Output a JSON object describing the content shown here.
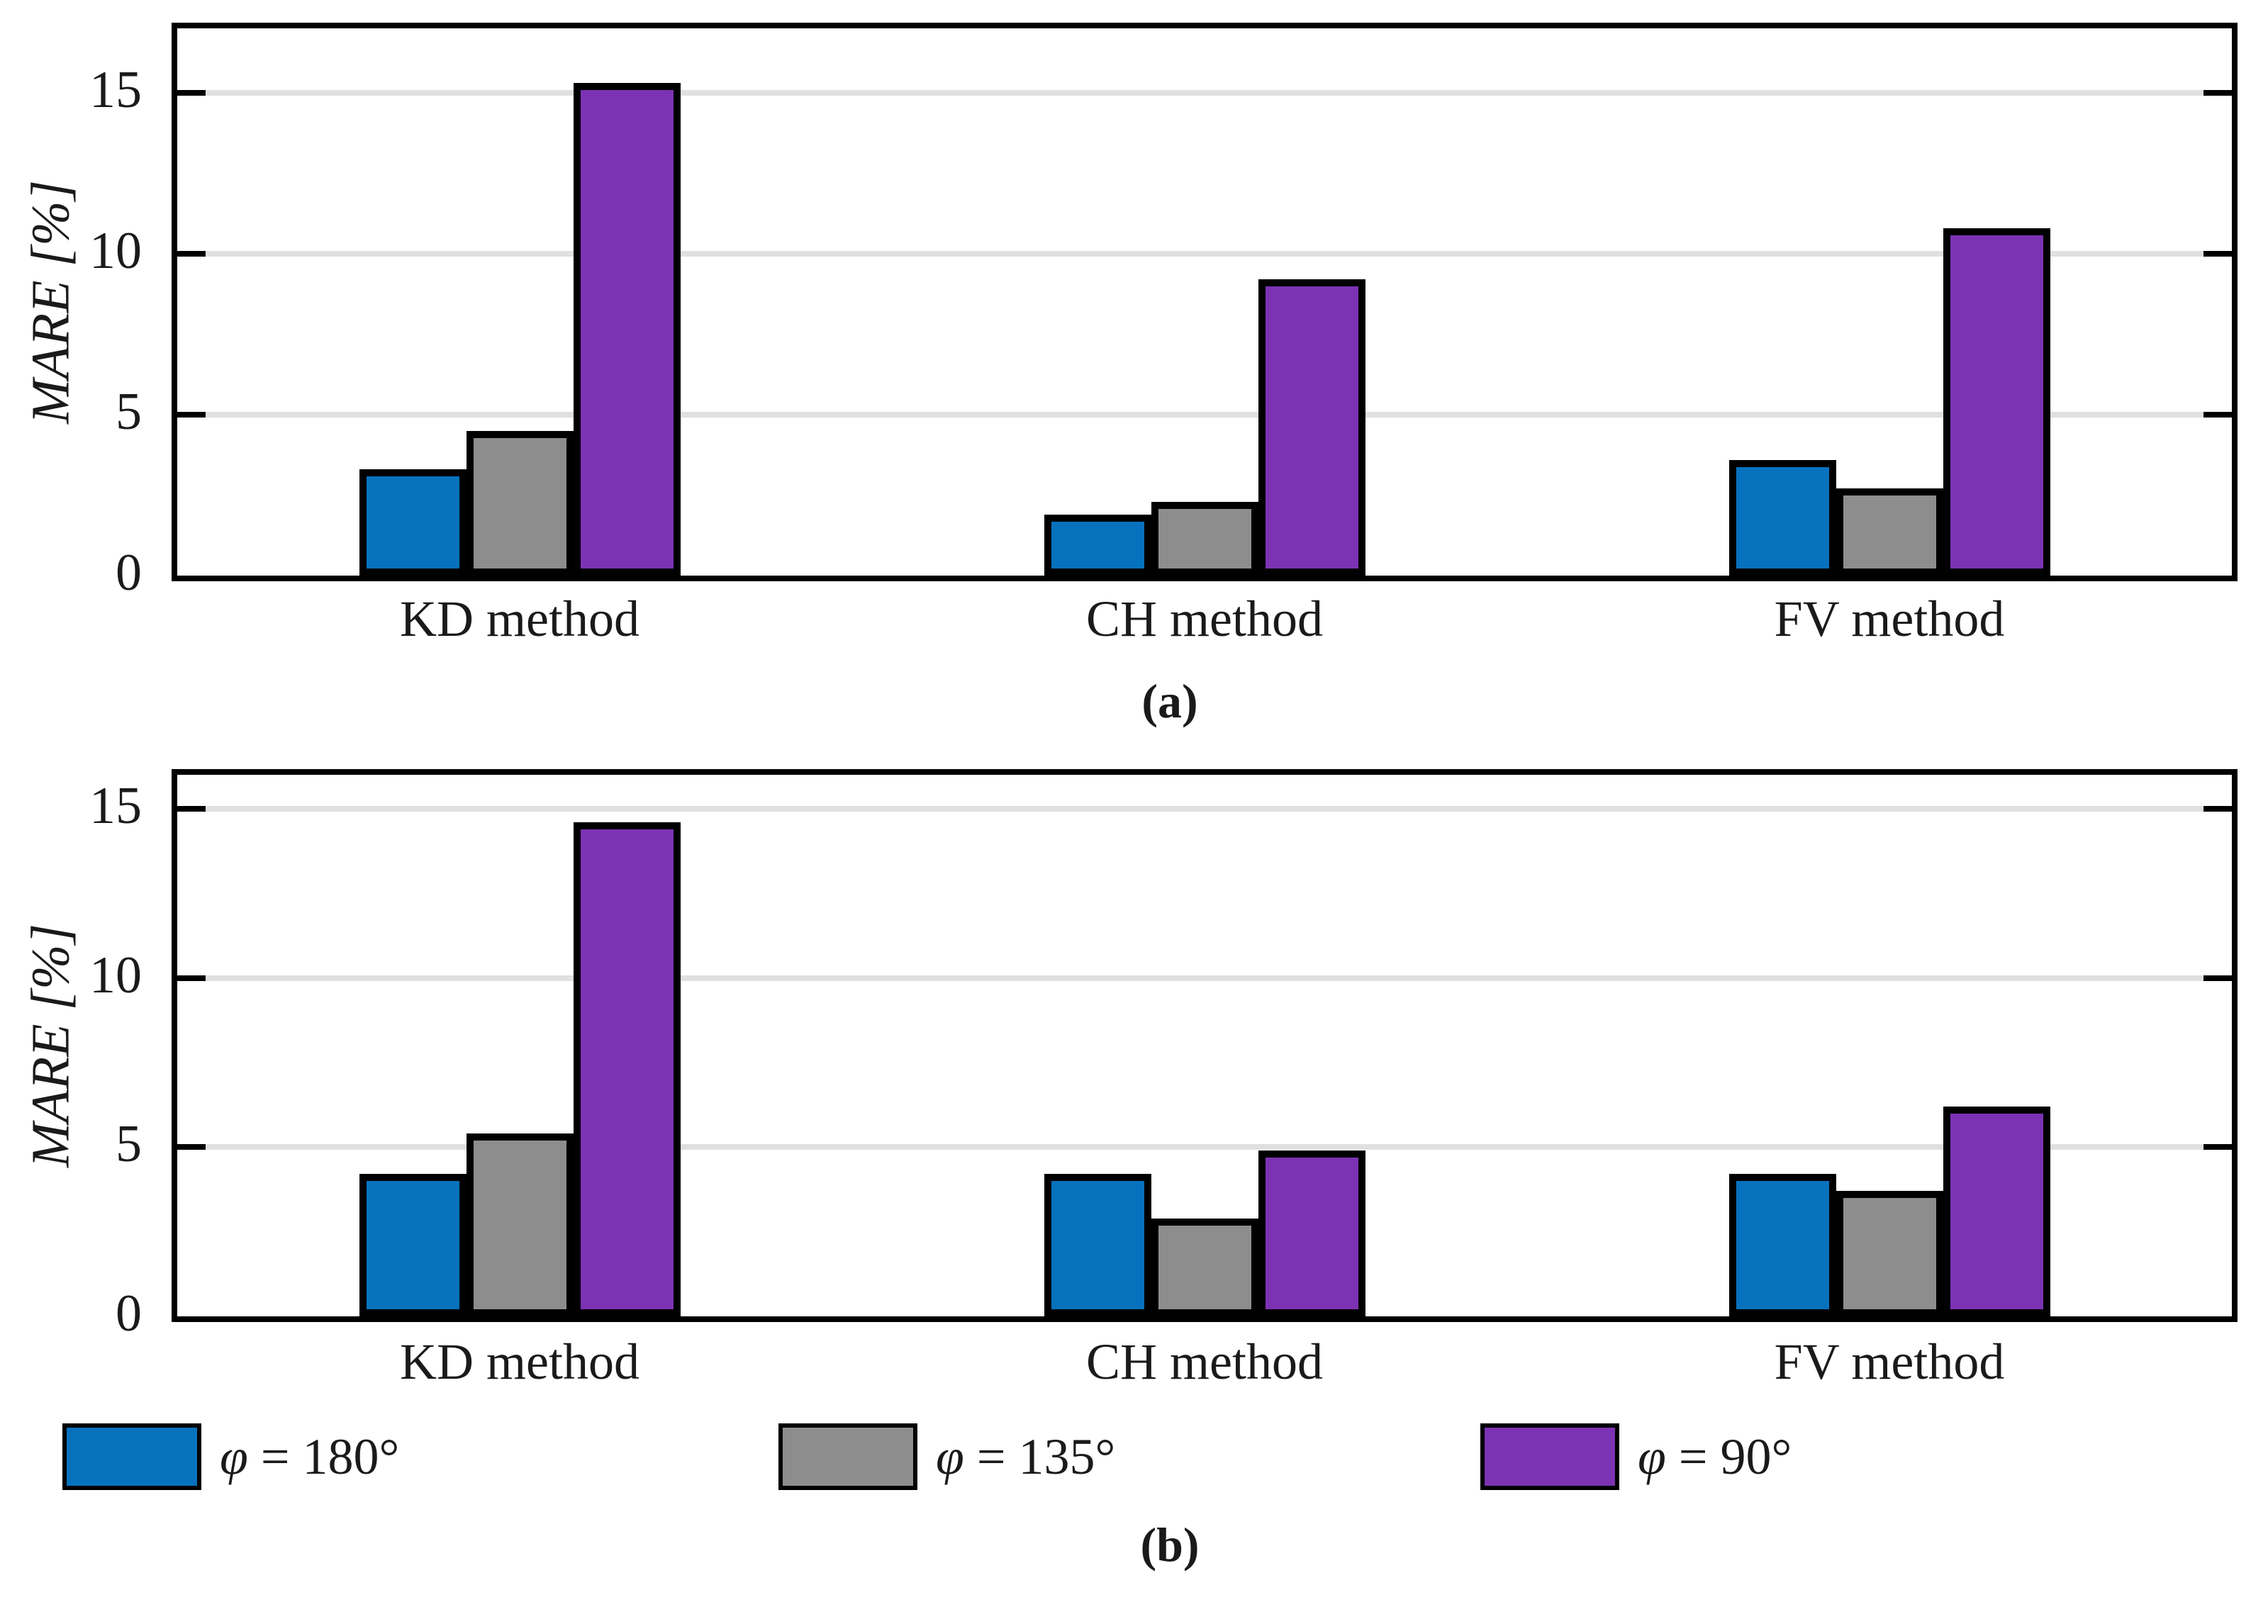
{
  "chart_data": [
    {
      "id": "a",
      "type": "bar",
      "caption": "(a)",
      "ylabel": "MARE [%]",
      "categories": [
        "KD method",
        "CH method",
        "FV method"
      ],
      "series": [
        {
          "name": "φ = 180°",
          "color": "#0672BE",
          "values": [
            3.3,
            1.9,
            3.6
          ]
        },
        {
          "name": "φ = 135°",
          "color": "#8D8D8D",
          "values": [
            4.5,
            2.3,
            2.7
          ]
        },
        {
          "name": "φ = 90°",
          "color": "#7C33B3",
          "values": [
            15.3,
            9.2,
            10.8
          ]
        }
      ],
      "yticks": [
        0,
        5,
        10,
        15
      ],
      "ylim": [
        0,
        17
      ],
      "grid": true,
      "legend_position": "none"
    },
    {
      "id": "b",
      "type": "bar",
      "caption": "(b)",
      "ylabel": "MARE [%]",
      "categories": [
        "KD method",
        "CH method",
        "FV method"
      ],
      "series": [
        {
          "name": "φ = 180°",
          "color": "#0672BE",
          "values": [
            4.2,
            4.2,
            4.2
          ]
        },
        {
          "name": "φ = 135°",
          "color": "#8D8D8D",
          "values": [
            5.4,
            2.9,
            3.7
          ]
        },
        {
          "name": "φ = 90°",
          "color": "#7C33B3",
          "values": [
            14.6,
            4.9,
            6.2
          ]
        }
      ],
      "yticks": [
        0,
        5,
        10,
        15
      ],
      "ylim": [
        0,
        16
      ],
      "grid": true,
      "legend_position": "bottom"
    }
  ],
  "legend": {
    "items": [
      {
        "symbol": "φ",
        "text": " = 180°",
        "color": "#0672BE"
      },
      {
        "symbol": "φ",
        "text": " = 135°",
        "color": "#8D8D8D"
      },
      {
        "symbol": "φ",
        "text": " = 90°",
        "color": "#7C33B3"
      }
    ]
  },
  "colors": {
    "gridline": "#E0E0E0",
    "frame": "#000000",
    "background": "#FFFFFF"
  }
}
